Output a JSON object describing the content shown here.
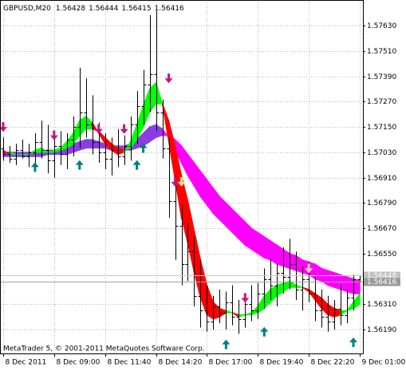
{
  "chart_data": {
    "type": "ohlc",
    "symbol": "GBPUSD,M20",
    "footer": "MetaTrader 5, © 2001-2011 MetaQuotes Software Corp.",
    "bar_color": "#000000",
    "grid": true,
    "xlim": [
      -0.5,
      56.5
    ],
    "ylim": [
      1.56077,
      1.5774
    ],
    "yticks": [
      {
        "value": 1.5763,
        "label": "1.57630"
      },
      {
        "value": 1.5751,
        "label": "1.57510"
      },
      {
        "value": 1.5739,
        "label": "1.57390"
      },
      {
        "value": 1.5727,
        "label": "1.57270"
      },
      {
        "value": 1.5715,
        "label": "1.57150"
      },
      {
        "value": 1.5703,
        "label": "1.57030"
      },
      {
        "value": 1.5691,
        "label": "1.56910"
      },
      {
        "value": 1.5679,
        "label": "1.56790"
      },
      {
        "value": 1.5667,
        "label": "1.56670"
      },
      {
        "value": 1.5655,
        "label": "1.56550"
      },
      {
        "value": 1.5631,
        "label": "1.56310"
      },
      {
        "value": 1.5619,
        "label": "1.56190"
      }
    ],
    "xticks": [
      {
        "value": 0,
        "label": "8 Dec 2011"
      },
      {
        "value": 8,
        "label": "8 Dec 09:00"
      },
      {
        "value": 16,
        "label": "8 Dec 11:40"
      },
      {
        "value": 24,
        "label": "8 Dec 14:20"
      },
      {
        "value": 32,
        "label": "8 Dec 17:00"
      },
      {
        "value": 40,
        "label": "8 Dec 19:40"
      },
      {
        "value": 48,
        "label": "8 Dec 22:20"
      },
      {
        "value": 56,
        "label": "9 Dec 01:00"
      }
    ],
    "ask": 1.56448,
    "bars": [
      [
        1.5705,
        1.571,
        1.5699,
        1.5702
      ],
      [
        1.5702,
        1.5706,
        1.5698,
        1.57
      ],
      [
        1.57,
        1.5707,
        1.5697,
        1.5704
      ],
      [
        1.5704,
        1.5709,
        1.57,
        1.5701
      ],
      [
        1.5701,
        1.5707,
        1.5696,
        1.5703
      ],
      [
        1.5703,
        1.5712,
        1.5698,
        1.5708
      ],
      [
        1.5708,
        1.5718,
        1.57,
        1.5704
      ],
      [
        1.5704,
        1.5716,
        1.5693,
        1.5699
      ],
      [
        1.5699,
        1.571,
        1.5691,
        1.5706
      ],
      [
        1.5706,
        1.5713,
        1.5697,
        1.5702
      ],
      [
        1.5702,
        1.5712,
        1.5695,
        1.5709
      ],
      [
        1.5709,
        1.572,
        1.5701,
        1.5715
      ],
      [
        1.5715,
        1.5743,
        1.5705,
        1.5722
      ],
      [
        1.5722,
        1.5738,
        1.571,
        1.5716
      ],
      [
        1.5716,
        1.573,
        1.5702,
        1.5708
      ],
      [
        1.5708,
        1.5717,
        1.5698,
        1.5703
      ],
      [
        1.5703,
        1.5712,
        1.5695,
        1.57
      ],
      [
        1.57,
        1.571,
        1.5692,
        1.5704
      ],
      [
        1.5704,
        1.5714,
        1.5696,
        1.5701
      ],
      [
        1.5701,
        1.5711,
        1.5697,
        1.5706
      ],
      [
        1.5706,
        1.572,
        1.5699,
        1.5716
      ],
      [
        1.5716,
        1.5732,
        1.5707,
        1.5725
      ],
      [
        1.5725,
        1.5742,
        1.5716,
        1.5735
      ],
      [
        1.5735,
        1.5768,
        1.5722,
        1.574
      ],
      [
        1.574,
        1.577,
        1.5713,
        1.5722
      ],
      [
        1.5722,
        1.5728,
        1.57,
        1.5705
      ],
      [
        1.5705,
        1.571,
        1.5672,
        1.568
      ],
      [
        1.568,
        1.5692,
        1.5652,
        1.5668
      ],
      [
        1.5668,
        1.5678,
        1.564,
        1.565
      ],
      [
        1.565,
        1.5669,
        1.5642,
        1.5656
      ],
      [
        1.5656,
        1.5663,
        1.563,
        1.5635
      ],
      [
        1.5635,
        1.5652,
        1.562,
        1.5628
      ],
      [
        1.5628,
        1.564,
        1.5618,
        1.5623
      ],
      [
        1.5623,
        1.5635,
        1.5619,
        1.563
      ],
      [
        1.563,
        1.5638,
        1.5622,
        1.5627
      ],
      [
        1.5627,
        1.5637,
        1.5619,
        1.5632
      ],
      [
        1.5632,
        1.564,
        1.5621,
        1.5625
      ],
      [
        1.5625,
        1.5633,
        1.5617,
        1.5624
      ],
      [
        1.5624,
        1.5636,
        1.562,
        1.5631
      ],
      [
        1.5631,
        1.564,
        1.5623,
        1.5628
      ],
      [
        1.5628,
        1.5641,
        1.5624,
        1.5636
      ],
      [
        1.5636,
        1.5648,
        1.5629,
        1.5643
      ],
      [
        1.5643,
        1.5652,
        1.5633,
        1.564
      ],
      [
        1.564,
        1.565,
        1.563,
        1.5646
      ],
      [
        1.5646,
        1.5658,
        1.5636,
        1.5644
      ],
      [
        1.5644,
        1.5662,
        1.5638,
        1.565
      ],
      [
        1.565,
        1.5656,
        1.5633,
        1.5638
      ],
      [
        1.5638,
        1.5649,
        1.5628,
        1.5643
      ],
      [
        1.5643,
        1.5651,
        1.5632,
        1.5636
      ],
      [
        1.5636,
        1.5644,
        1.5623,
        1.5628
      ],
      [
        1.5628,
        1.5638,
        1.562,
        1.5625
      ],
      [
        1.5625,
        1.5635,
        1.5618,
        1.5623
      ],
      [
        1.5623,
        1.5633,
        1.5619,
        1.5629
      ],
      [
        1.5629,
        1.564,
        1.5621,
        1.5626
      ],
      [
        1.5626,
        1.5638,
        1.5622,
        1.5634
      ],
      [
        1.5634,
        1.5645,
        1.5628,
        1.5643
      ],
      [
        1.56428,
        1.56444,
        1.56415,
        1.56416
      ]
    ],
    "slow_ribbon": {
      "color_up": "#8a3ee0",
      "color_down": "#ff00ff",
      "a": [
        1.5703,
        1.5703,
        1.5703,
        1.5703,
        1.5703,
        1.5703,
        1.5704,
        1.5704,
        1.5704,
        1.5705,
        1.5706,
        1.5707,
        1.5708,
        1.5709,
        1.5709,
        1.5708,
        1.5707,
        1.5706,
        1.5706,
        1.5706,
        1.5707,
        1.5709,
        1.5712,
        1.5715,
        1.5716,
        1.5714,
        1.571,
        1.5704,
        1.5698,
        1.5692,
        1.5687,
        1.5682,
        1.5678,
        1.5674,
        1.5671,
        1.5668,
        1.5665,
        1.5662,
        1.5659,
        1.5657,
        1.5655,
        1.5653,
        1.5652,
        1.565,
        1.5649,
        1.5648,
        1.5647,
        1.5646,
        1.5645,
        1.5643,
        1.5642,
        1.564,
        1.5639,
        1.5638,
        1.5637,
        1.5636,
        1.5636
      ],
      "b": [
        1.5701,
        1.5701,
        1.5701,
        1.5701,
        1.5701,
        1.5701,
        1.5701,
        1.5702,
        1.5702,
        1.5702,
        1.5702,
        1.5703,
        1.5704,
        1.5705,
        1.5705,
        1.5705,
        1.5705,
        1.5704,
        1.5704,
        1.5704,
        1.5704,
        1.5705,
        1.5706,
        1.5708,
        1.571,
        1.5711,
        1.5711,
        1.5709,
        1.5706,
        1.5702,
        1.5698,
        1.5694,
        1.569,
        1.5686,
        1.5682,
        1.5679,
        1.5676,
        1.5673,
        1.567,
        1.5667,
        1.5665,
        1.5663,
        1.5661,
        1.5659,
        1.5657,
        1.5655,
        1.5654,
        1.5652,
        1.5651,
        1.565,
        1.5648,
        1.5647,
        1.5646,
        1.5645,
        1.5644,
        1.5643,
        1.5642
      ]
    },
    "fast_ribbon": {
      "color_up": "#00ff00",
      "color_down": "#ff0000",
      "a": [
        1.5704,
        1.5702,
        1.5702,
        1.5702,
        1.5702,
        1.5704,
        1.5705,
        1.5703,
        1.5704,
        1.5705,
        1.5708,
        1.5712,
        1.5718,
        1.572,
        1.5717,
        1.5712,
        1.5707,
        1.5704,
        1.5702,
        1.5703,
        1.5708,
        1.5716,
        1.5725,
        1.5733,
        1.5736,
        1.5726,
        1.5708,
        1.569,
        1.5672,
        1.566,
        1.5646,
        1.5634,
        1.5626,
        1.5624,
        1.5625,
        1.5627,
        1.5627,
        1.5625,
        1.5626,
        1.5627,
        1.563,
        1.5635,
        1.5638,
        1.564,
        1.5641,
        1.5642,
        1.564,
        1.5639,
        1.5637,
        1.5633,
        1.5629,
        1.5626,
        1.5625,
        1.5626,
        1.5628,
        1.5632,
        1.5636
      ],
      "b": [
        1.5703,
        1.5703,
        1.5702,
        1.5702,
        1.5702,
        1.5703,
        1.5703,
        1.5703,
        1.5703,
        1.5704,
        1.5705,
        1.5707,
        1.5711,
        1.5714,
        1.5714,
        1.5713,
        1.571,
        1.5707,
        1.5705,
        1.5704,
        1.5705,
        1.5709,
        1.5715,
        1.5722,
        1.5726,
        1.5726,
        1.5718,
        1.5706,
        1.5692,
        1.568,
        1.5666,
        1.5652,
        1.564,
        1.5632,
        1.5629,
        1.5628,
        1.5627,
        1.5626,
        1.5626,
        1.5626,
        1.5627,
        1.5629,
        1.5632,
        1.5635,
        1.5637,
        1.5639,
        1.5639,
        1.5639,
        1.5638,
        1.5636,
        1.5634,
        1.5631,
        1.5629,
        1.5628,
        1.5628,
        1.5629,
        1.5631
      ]
    },
    "up_arrows": {
      "color": "#008080",
      "points": [
        {
          "x": 5,
          "y": 1.5696
        },
        {
          "x": 12,
          "y": 1.5697
        },
        {
          "x": 21,
          "y": 1.5697
        },
        {
          "x": 22,
          "y": 1.5705
        },
        {
          "x": 35,
          "y": 1.5612
        },
        {
          "x": 41,
          "y": 1.5618
        },
        {
          "x": 55,
          "y": 1.5613
        }
      ]
    },
    "down_arrows": {
      "color": "#c8137f",
      "points": [
        {
          "x": 0,
          "y": 1.5715
        },
        {
          "x": 8,
          "y": 1.5711
        },
        {
          "x": 15,
          "y": 1.5714
        },
        {
          "x": 19,
          "y": 1.5714
        },
        {
          "x": 26,
          "y": 1.5738
        },
        {
          "x": 27,
          "y": 1.5689
        },
        {
          "x": 38,
          "y": 1.5634
        }
      ]
    },
    "alt_arrows": {
      "color": "#e6dca0",
      "points": [
        {
          "x": 28,
          "y": 1.5689
        },
        {
          "x": 48,
          "y": 1.5648
        }
      ]
    }
  }
}
